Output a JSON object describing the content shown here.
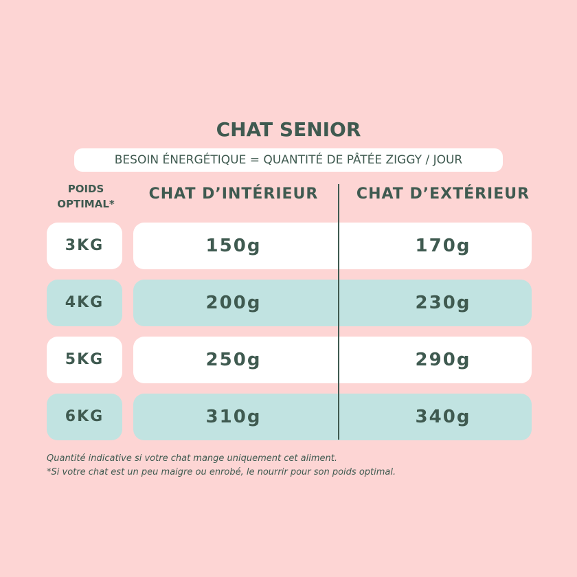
{
  "title": "CHAT SENIOR",
  "subtitle": "BESOIN ÉNERGÉTIQUE = QUANTITÉ DE PÂTÉE ZIGGY / JOUR",
  "table": {
    "header": [
      "POIDS OPTIMAL*",
      "CHAT D’INTÉRIEUR",
      "CHAT D’EXTÉRIEUR"
    ],
    "rows": [
      [
        "3KG",
        "150g",
        "170g"
      ],
      [
        "4KG",
        "200g",
        "230g"
      ],
      [
        "5KG",
        "250g",
        "290g"
      ],
      [
        "6KG",
        "310g",
        "340g"
      ]
    ]
  },
  "notes": [
    "Quantité indicative si votre chat mange uniquement cet aliment.",
    "*Si votre chat est un peu maigre ou enrobé, le nourrir pour son poids optimal."
  ]
}
